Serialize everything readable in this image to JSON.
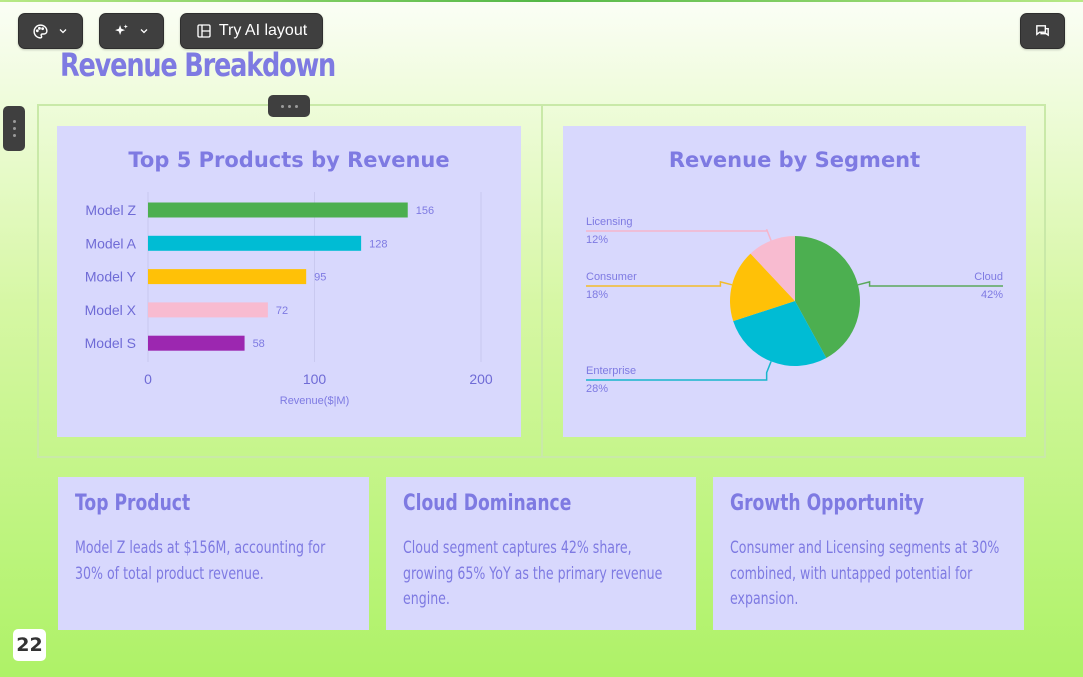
{
  "toolbar": {
    "theme_icon": "palette-icon",
    "ai_icon": "sparkles-icon",
    "ai_layout_label": "Try AI layout",
    "ai_layout_icon": "layout-icon",
    "comment_icon": "comment-icon"
  },
  "slide": {
    "title": "Revenue Breakdown",
    "page_number": "22"
  },
  "bar_chart_title": "Top 5 Products by Revenue",
  "pie_chart_title": "Revenue by Segment",
  "chart_data": [
    {
      "type": "bar",
      "orientation": "horizontal",
      "title": "Top 5 Products by Revenue",
      "categories": [
        "Model Z",
        "Model A",
        "Model Y",
        "Model X",
        "Model S"
      ],
      "values": [
        156,
        128,
        95,
        72,
        58
      ],
      "value_labels": [
        "156",
        "128",
        "95",
        "72",
        "58"
      ],
      "colors": [
        "#4caf50",
        "#00bcd4",
        "#ffc107",
        "#f8bbd0",
        "#9c27b0"
      ],
      "xlabel": "Revenue($|M)",
      "ylabel": "",
      "xlim": [
        0,
        200
      ],
      "xticks": [
        "0",
        "100",
        "200"
      ],
      "grid": true
    },
    {
      "type": "pie",
      "title": "Revenue by Segment",
      "slices": [
        {
          "label": "Cloud",
          "value": 42,
          "pct": "42%",
          "color": "#4caf50"
        },
        {
          "label": "Enterprise",
          "value": 28,
          "pct": "28%",
          "color": "#00bcd4"
        },
        {
          "label": "Consumer",
          "value": 18,
          "pct": "18%",
          "color": "#ffc107"
        },
        {
          "label": "Licensing",
          "value": 12,
          "pct": "12%",
          "color": "#f8bbd0"
        }
      ]
    }
  ],
  "cards": [
    {
      "title": "Top Product",
      "body": "Model Z leads at $156M, accounting for 30% of total product revenue."
    },
    {
      "title": "Cloud Dominance",
      "body": "Cloud segment captures 42% share, growing 65% YoY as the primary revenue engine."
    },
    {
      "title": "Growth Opportunity",
      "body": "Consumer and Licensing segments at 30% combined, with untapped potential for expansion."
    }
  ]
}
